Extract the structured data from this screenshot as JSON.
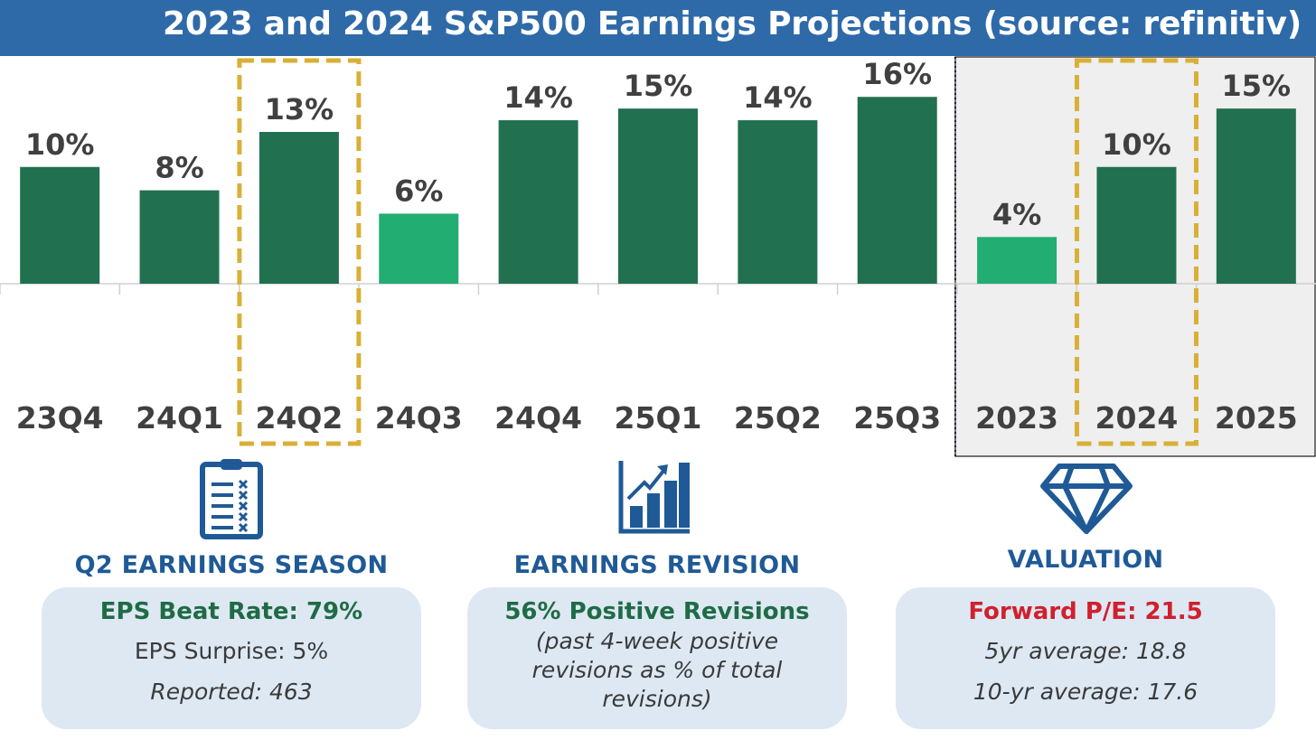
{
  "header": {
    "title": "2023 and 2024 S&P500 Earnings Projections (source: refinitiv)"
  },
  "chart_data": {
    "type": "bar",
    "categories": [
      "23Q4",
      "24Q1",
      "24Q2",
      "24Q3",
      "24Q4",
      "25Q1",
      "25Q2",
      "25Q3",
      "2023",
      "2024",
      "2025"
    ],
    "values": [
      10,
      8,
      13,
      6,
      14,
      15,
      14,
      16,
      4,
      10,
      15
    ],
    "value_labels": [
      "10%",
      "8%",
      "13%",
      "6%",
      "14%",
      "15%",
      "14%",
      "16%",
      "4%",
      "10%",
      "15%"
    ],
    "bar_colors": [
      "#21704f",
      "#21704f",
      "#21704f",
      "#22ad72",
      "#21704f",
      "#21704f",
      "#21704f",
      "#21704f",
      "#22ad72",
      "#21704f",
      "#21704f"
    ],
    "highlighted_categories": [
      "24Q2",
      "2024"
    ],
    "annual_group": [
      "2023",
      "2024",
      "2025"
    ],
    "highlight_color": "#d9b036",
    "annual_background": "#efefef",
    "title": "",
    "xlabel": "",
    "ylabel": "",
    "ylim": [
      0,
      19.5
    ]
  },
  "cards": [
    {
      "icon": "clipboard-checklist-icon",
      "title": "Q2 EARNINGS SEASON",
      "headline": "EPS Beat Rate: 79%",
      "headline_color": "#1f6b45",
      "lines": [
        "EPS Surprise: 5%",
        "Reported: 463"
      ]
    },
    {
      "icon": "growth-chart-icon",
      "title": "EARNINGS REVISION",
      "headline": "56% Positive Revisions",
      "headline_color": "#1f6b45",
      "lines": [
        "(past 4-week positive",
        "revisions as % of total",
        "revisions)"
      ]
    },
    {
      "icon": "diamond-icon",
      "title": "VALUATION",
      "headline": "Forward P/E: 21.5",
      "headline_color": "#d0202e",
      "lines": [
        "5yr average: 18.8",
        "10-yr average: 17.6"
      ]
    }
  ]
}
